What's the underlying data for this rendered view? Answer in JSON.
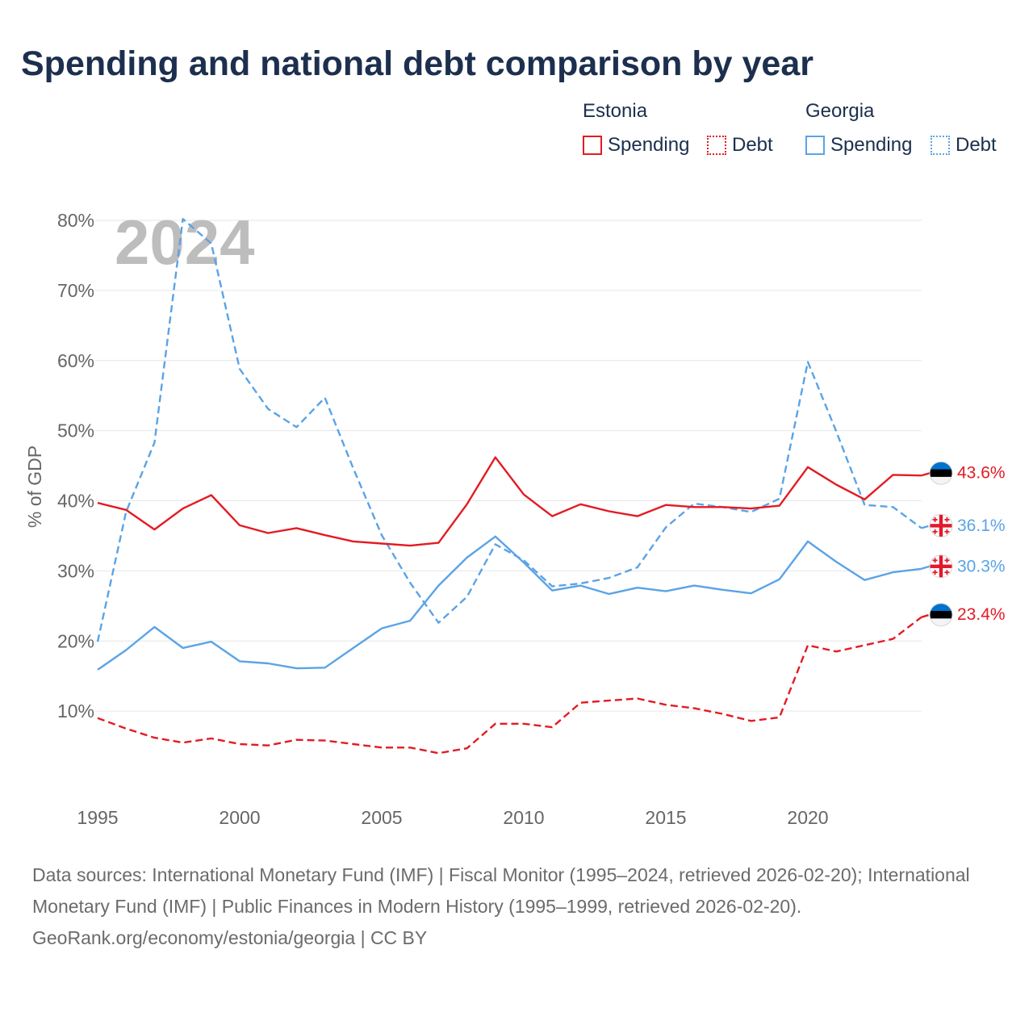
{
  "chart_data": {
    "type": "line",
    "title": "Spending and national debt comparison by year",
    "ylabel": "% of GDP",
    "ylim": [
      0,
      80
    ],
    "xlim": [
      1995,
      2024
    ],
    "y_ticks": [
      10,
      20,
      30,
      40,
      50,
      60,
      70,
      80
    ],
    "y_tick_labels": [
      "10%",
      "20%",
      "30%",
      "40%",
      "50%",
      "60%",
      "70%",
      "80%"
    ],
    "x_ticks": [
      1995,
      2000,
      2005,
      2010,
      2015,
      2020
    ],
    "x_tick_labels": [
      "1995",
      "2000",
      "2005",
      "2010",
      "2015",
      "2020"
    ],
    "grid": true,
    "year_watermark": "2024",
    "x": [
      1995,
      1996,
      1997,
      1998,
      1999,
      2000,
      2001,
      2002,
      2003,
      2004,
      2005,
      2006,
      2007,
      2008,
      2009,
      2010,
      2011,
      2012,
      2013,
      2014,
      2015,
      2016,
      2017,
      2018,
      2019,
      2020,
      2021,
      2022,
      2023,
      2024
    ],
    "series": [
      {
        "group": "Estonia",
        "name": "Spending",
        "color": "#e31b23",
        "dashed": false,
        "flag_icon": "estonia-flag-icon",
        "end_label": "43.6%",
        "values": [
          39.7,
          38.7,
          35.9,
          38.9,
          40.8,
          36.5,
          35.4,
          36.1,
          35.1,
          34.2,
          33.9,
          33.6,
          34.0,
          39.5,
          46.2,
          40.9,
          37.8,
          39.5,
          38.5,
          37.8,
          39.4,
          39.1,
          39.1,
          38.9,
          39.3,
          44.8,
          42.3,
          40.2,
          43.7,
          43.6
        ]
      },
      {
        "group": "Estonia",
        "name": "Debt",
        "color": "#e31b23",
        "dashed": true,
        "flag_icon": "estonia-flag-icon",
        "end_label": "23.4%",
        "values": [
          9.0,
          7.5,
          6.2,
          5.5,
          6.1,
          5.3,
          5.1,
          5.9,
          5.8,
          5.3,
          4.8,
          4.8,
          4.0,
          4.7,
          8.2,
          8.2,
          7.7,
          11.2,
          11.5,
          11.8,
          10.9,
          10.4,
          9.6,
          8.6,
          9.1,
          19.4,
          18.5,
          19.4,
          20.3,
          23.4
        ]
      },
      {
        "group": "Georgia",
        "name": "Spending",
        "color": "#5ba3e6",
        "dashed": false,
        "flag_icon": "georgia-flag-icon",
        "end_label": "30.3%",
        "values": [
          15.9,
          18.7,
          22.0,
          19.0,
          19.9,
          17.1,
          16.8,
          16.1,
          16.2,
          19.0,
          21.8,
          22.9,
          27.9,
          31.9,
          34.9,
          31.2,
          27.2,
          27.9,
          26.7,
          27.6,
          27.1,
          27.9,
          27.3,
          26.8,
          28.8,
          34.2,
          31.3,
          28.7,
          29.8,
          30.3
        ]
      },
      {
        "group": "Georgia",
        "name": "Debt",
        "color": "#5ba3e6",
        "dashed": true,
        "flag_icon": "georgia-flag-icon",
        "end_label": "36.1%",
        "values": [
          19.9,
          38.4,
          48.3,
          80.2,
          76.7,
          58.8,
          53.1,
          50.5,
          54.7,
          44.6,
          35.1,
          28.3,
          22.6,
          26.3,
          33.8,
          31.5,
          27.8,
          28.2,
          29.0,
          30.5,
          36.2,
          39.6,
          39.1,
          38.4,
          40.3,
          59.8,
          49.9,
          39.4,
          39.1,
          36.1
        ]
      }
    ]
  },
  "footer": {
    "sources": "Data sources: International Monetary Fund (IMF) | Fiscal Monitor (1995–2024, retrieved 2026-02-20); International Monetary Fund (IMF) | Public Finances in Modern History (1995–1999, retrieved 2026-02-20).",
    "credit": "GeoRank.org/economy/estonia/georgia | CC BY"
  }
}
